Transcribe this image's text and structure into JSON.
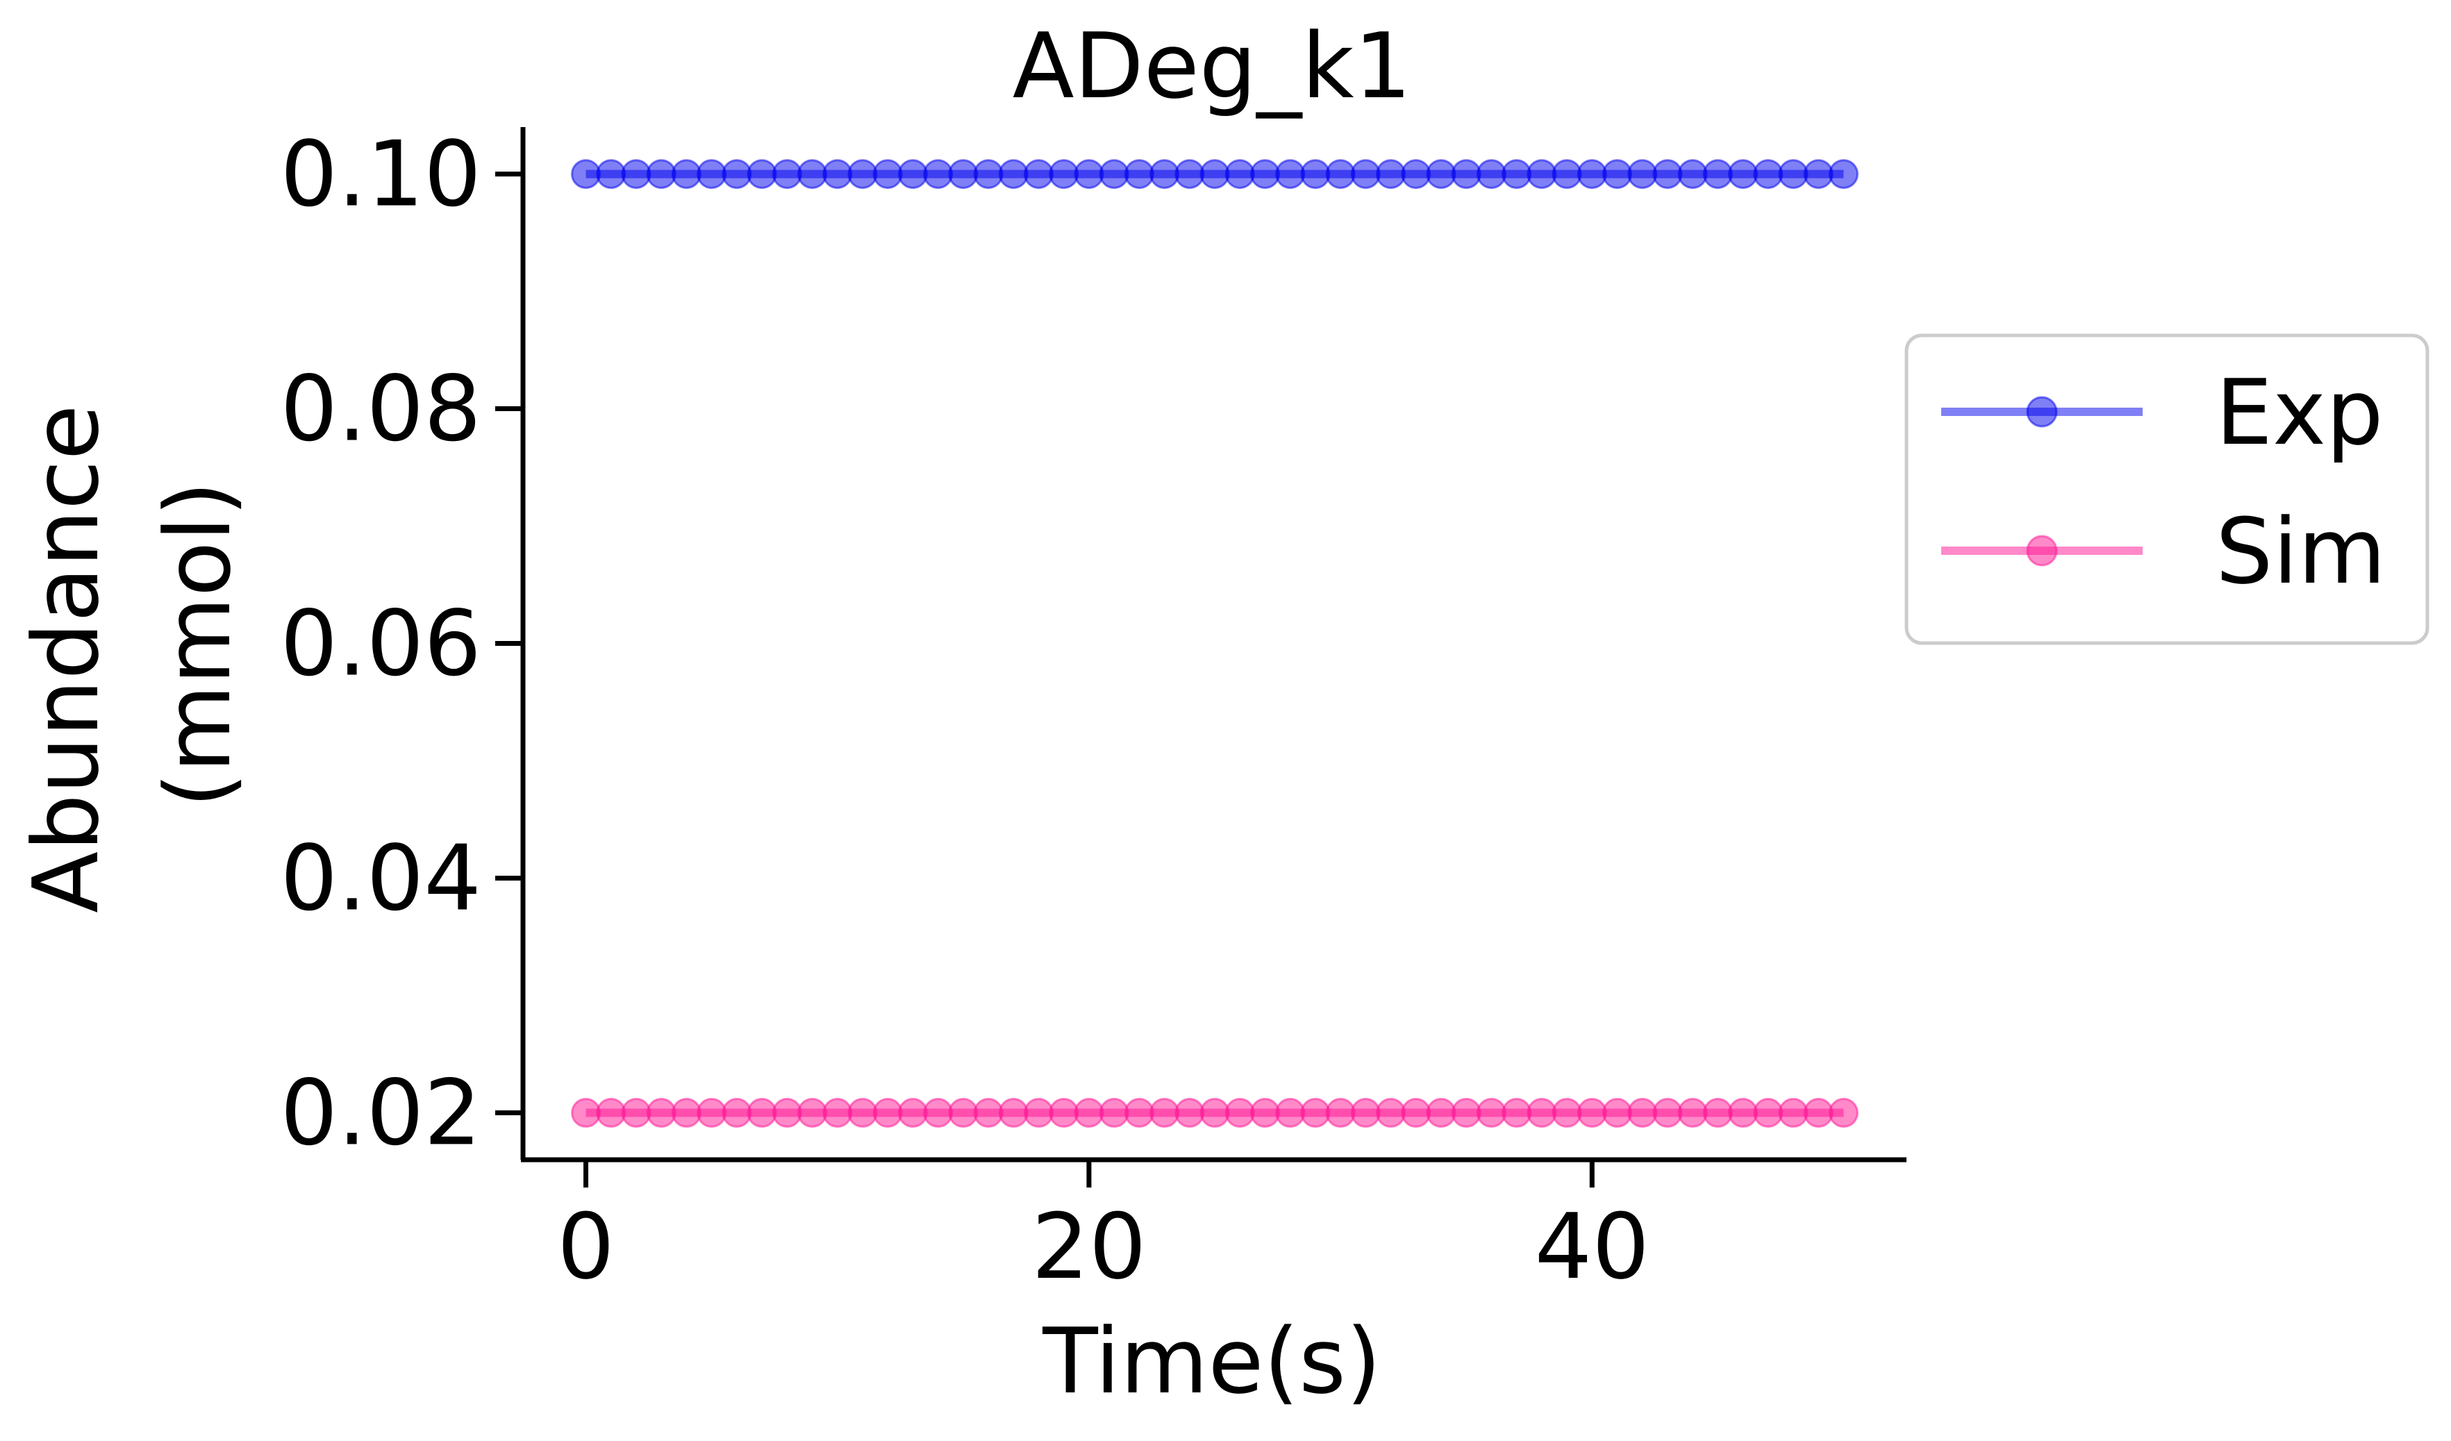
{
  "chart_data": {
    "type": "line",
    "title": "ADeg_k1",
    "xlabel": "Time(s)",
    "ylabel_lines": [
      "Abundance",
      "(mmol)"
    ],
    "xlim": [
      -2.5,
      52.5
    ],
    "ylim": [
      0.016,
      0.104
    ],
    "x_ticks": [
      0,
      20,
      40
    ],
    "x_tick_labels": [
      "0",
      "20",
      "40"
    ],
    "y_ticks": [
      0.02,
      0.04,
      0.06,
      0.08,
      0.1
    ],
    "y_tick_labels": [
      "0.02",
      "0.04",
      "0.06",
      "0.08",
      "0.10"
    ],
    "grid": false,
    "legend_position": "right, outside plot",
    "x": [
      0,
      1,
      2,
      3,
      4,
      5,
      6,
      7,
      8,
      9,
      10,
      11,
      12,
      13,
      14,
      15,
      16,
      17,
      18,
      19,
      20,
      21,
      22,
      23,
      24,
      25,
      26,
      27,
      28,
      29,
      30,
      31,
      32,
      33,
      34,
      35,
      36,
      37,
      38,
      39,
      40,
      41,
      42,
      43,
      44,
      45,
      46,
      47,
      48,
      49,
      50
    ],
    "series": [
      {
        "name": "Exp",
        "color": "#0000ee",
        "values": [
          0.1,
          0.1,
          0.1,
          0.1,
          0.1,
          0.1,
          0.1,
          0.1,
          0.1,
          0.1,
          0.1,
          0.1,
          0.1,
          0.1,
          0.1,
          0.1,
          0.1,
          0.1,
          0.1,
          0.1,
          0.1,
          0.1,
          0.1,
          0.1,
          0.1,
          0.1,
          0.1,
          0.1,
          0.1,
          0.1,
          0.1,
          0.1,
          0.1,
          0.1,
          0.1,
          0.1,
          0.1,
          0.1,
          0.1,
          0.1,
          0.1,
          0.1,
          0.1,
          0.1,
          0.1,
          0.1,
          0.1,
          0.1,
          0.1,
          0.1,
          0.1
        ]
      },
      {
        "name": "Sim",
        "color": "#ff1493",
        "values": [
          0.02,
          0.02,
          0.02,
          0.02,
          0.02,
          0.02,
          0.02,
          0.02,
          0.02,
          0.02,
          0.02,
          0.02,
          0.02,
          0.02,
          0.02,
          0.02,
          0.02,
          0.02,
          0.02,
          0.02,
          0.02,
          0.02,
          0.02,
          0.02,
          0.02,
          0.02,
          0.02,
          0.02,
          0.02,
          0.02,
          0.02,
          0.02,
          0.02,
          0.02,
          0.02,
          0.02,
          0.02,
          0.02,
          0.02,
          0.02,
          0.02,
          0.02,
          0.02,
          0.02,
          0.02,
          0.02,
          0.02,
          0.02,
          0.02,
          0.02,
          0.02
        ]
      }
    ]
  }
}
